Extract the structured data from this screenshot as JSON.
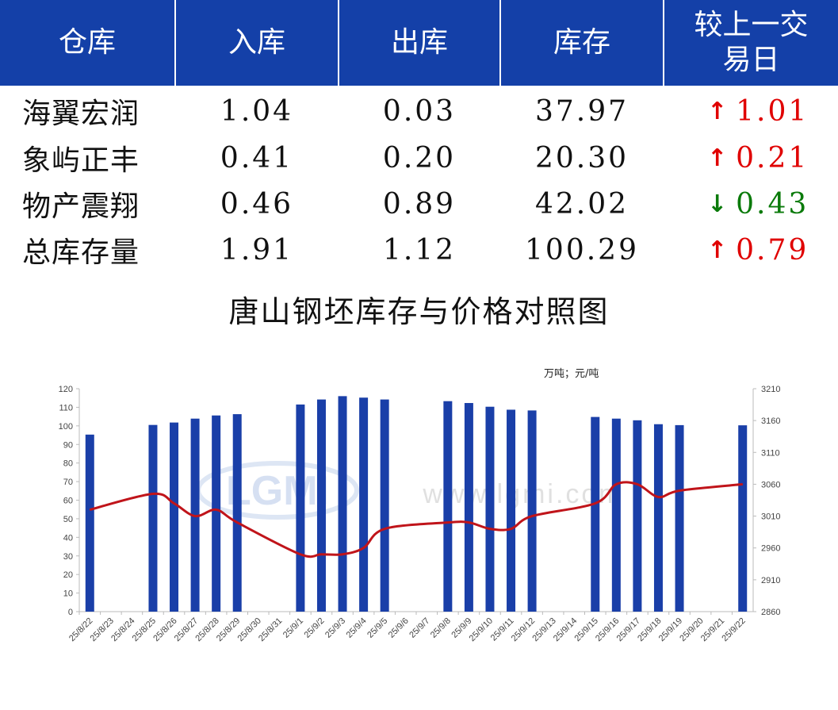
{
  "table": {
    "headers": [
      "仓库",
      "入库",
      "出库",
      "库存",
      "较上一交易日"
    ],
    "rows": [
      {
        "name": "海翼宏润",
        "in": "1.04",
        "out": "0.03",
        "stock": "37.97",
        "dir": "up",
        "arrow": "↑",
        "change": "1.01"
      },
      {
        "name": "象屿正丰",
        "in": "0.41",
        "out": "0.20",
        "stock": "20.30",
        "dir": "up",
        "arrow": "↑",
        "change": "0.21"
      },
      {
        "name": "物产震翔",
        "in": "0.46",
        "out": "0.89",
        "stock": "42.02",
        "dir": "down",
        "arrow": "↓",
        "change": "0.43"
      },
      {
        "name": "总库存量",
        "in": "1.91",
        "out": "1.12",
        "stock": "100.29",
        "dir": "up",
        "arrow": "↑",
        "change": "0.79"
      }
    ],
    "colors": {
      "header_bg": "#1440a8",
      "up": "#e00000",
      "down": "#0a7a0a"
    }
  },
  "chart_title": "唐山钢坯库存与价格对照图",
  "watermark": {
    "logo": "LGMI",
    "url": "www.lgmi.com"
  },
  "chart_data": {
    "type": "bar+line",
    "unit_label": "万吨；元/吨",
    "categories": [
      "25/8/22",
      "25/8/23",
      "25/8/24",
      "25/8/25",
      "25/8/26",
      "25/8/27",
      "25/8/28",
      "25/8/29",
      "25/8/30",
      "25/8/31",
      "25/9/1",
      "25/9/2",
      "25/9/3",
      "25/9/4",
      "25/9/5",
      "25/9/6",
      "25/9/7",
      "25/9/8",
      "25/9/9",
      "25/9/10",
      "25/9/11",
      "25/9/12",
      "25/9/13",
      "25/9/14",
      "25/9/15",
      "25/9/16",
      "25/9/17",
      "25/9/18",
      "25/9/19",
      "25/9/20",
      "25/9/21",
      "25/9/22"
    ],
    "series": [
      {
        "axis": "left",
        "type": "bar",
        "color": "#1a3fa8",
        "values": [
          95.3,
          null,
          null,
          100.5,
          101.8,
          103.9,
          105.6,
          106.3,
          null,
          null,
          111.5,
          114.2,
          116.0,
          115.2,
          114.2,
          null,
          null,
          113.3,
          112.3,
          110.3,
          108.7,
          108.3,
          null,
          null,
          104.8,
          103.9,
          103.0,
          100.9,
          100.4,
          null,
          null,
          100.3
        ]
      },
      {
        "axis": "right",
        "type": "line",
        "color": "#c0141a",
        "values": [
          3020,
          null,
          null,
          3045,
          3030,
          3010,
          3020,
          3000,
          null,
          null,
          2950,
          2950,
          2950,
          2960,
          2990,
          null,
          null,
          3000,
          3000,
          2990,
          2990,
          3010,
          null,
          null,
          3030,
          3060,
          3060,
          3040,
          3050,
          null,
          null,
          3060
        ]
      }
    ],
    "y_left": {
      "min": 0,
      "max": 120,
      "ticks": [
        0,
        10,
        20,
        30,
        40,
        50,
        60,
        70,
        80,
        90,
        100,
        110,
        120
      ]
    },
    "y_right": {
      "min": 2860,
      "max": 3210,
      "ticks": [
        2860,
        2910,
        2960,
        3010,
        3060,
        3110,
        3160,
        3210
      ]
    },
    "grid": false,
    "legend": "none"
  }
}
